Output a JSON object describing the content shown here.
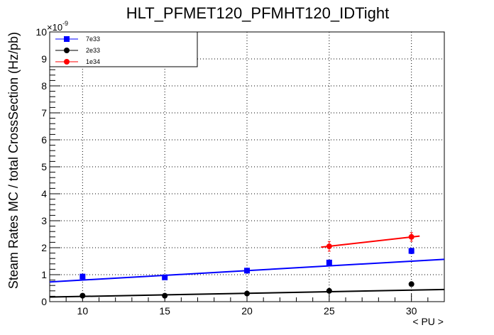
{
  "chart_data": {
    "type": "scatter",
    "title": "HLT_PFMET120_PFMHT120_IDTight",
    "xlabel": "< PU >",
    "ylabel": "Steam Rates MC / total CrossSection (Hz/pb)",
    "y_exponent_label": "×10",
    "y_exponent_power": "-9",
    "xlim": [
      8,
      32
    ],
    "ylim": [
      0,
      10
    ],
    "x_ticks": [
      10,
      15,
      20,
      25,
      30
    ],
    "x_tick_labels": [
      "10",
      "15",
      "20",
      "25",
      "30"
    ],
    "y_ticks": [
      0,
      1,
      2,
      3,
      4,
      5,
      6,
      7,
      8,
      9,
      10
    ],
    "y_tick_labels": [
      "0",
      "1",
      "2",
      "3",
      "4",
      "5",
      "6",
      "7",
      "8",
      "9",
      "10"
    ],
    "grid": true,
    "legend_position": "top-left",
    "series": [
      {
        "name": "7e33",
        "color": "#0000ff",
        "marker": "square",
        "points": [
          {
            "x": 10,
            "y": 0.93,
            "err": 0.06
          },
          {
            "x": 15,
            "y": 0.9,
            "err": 0.06
          },
          {
            "x": 20,
            "y": 1.15,
            "err": 0.07
          },
          {
            "x": 25,
            "y": 1.45,
            "err": 0.08
          },
          {
            "x": 30,
            "y": 1.88,
            "err": 0.1
          }
        ],
        "fit": [
          {
            "x": 8,
            "y": 0.73
          },
          {
            "x": 32,
            "y": 1.57
          }
        ]
      },
      {
        "name": "2e33",
        "color": "#000000",
        "marker": "circle",
        "points": [
          {
            "x": 10,
            "y": 0.22,
            "err": 0.03
          },
          {
            "x": 15,
            "y": 0.22,
            "err": 0.03
          },
          {
            "x": 20,
            "y": 0.3,
            "err": 0.03
          },
          {
            "x": 25,
            "y": 0.4,
            "err": 0.04
          },
          {
            "x": 30,
            "y": 0.65,
            "err": 0.05
          }
        ],
        "fit": [
          {
            "x": 8,
            "y": 0.17
          },
          {
            "x": 32,
            "y": 0.45
          }
        ]
      },
      {
        "name": "1e34",
        "color": "#ff0000",
        "marker": "circle",
        "points": [
          {
            "x": 25,
            "y": 2.05,
            "err": 0.18
          },
          {
            "x": 30,
            "y": 2.4,
            "err": 0.16
          }
        ],
        "fit": [
          {
            "x": 24.5,
            "y": 2.02
          },
          {
            "x": 30.5,
            "y": 2.43
          }
        ]
      }
    ]
  }
}
